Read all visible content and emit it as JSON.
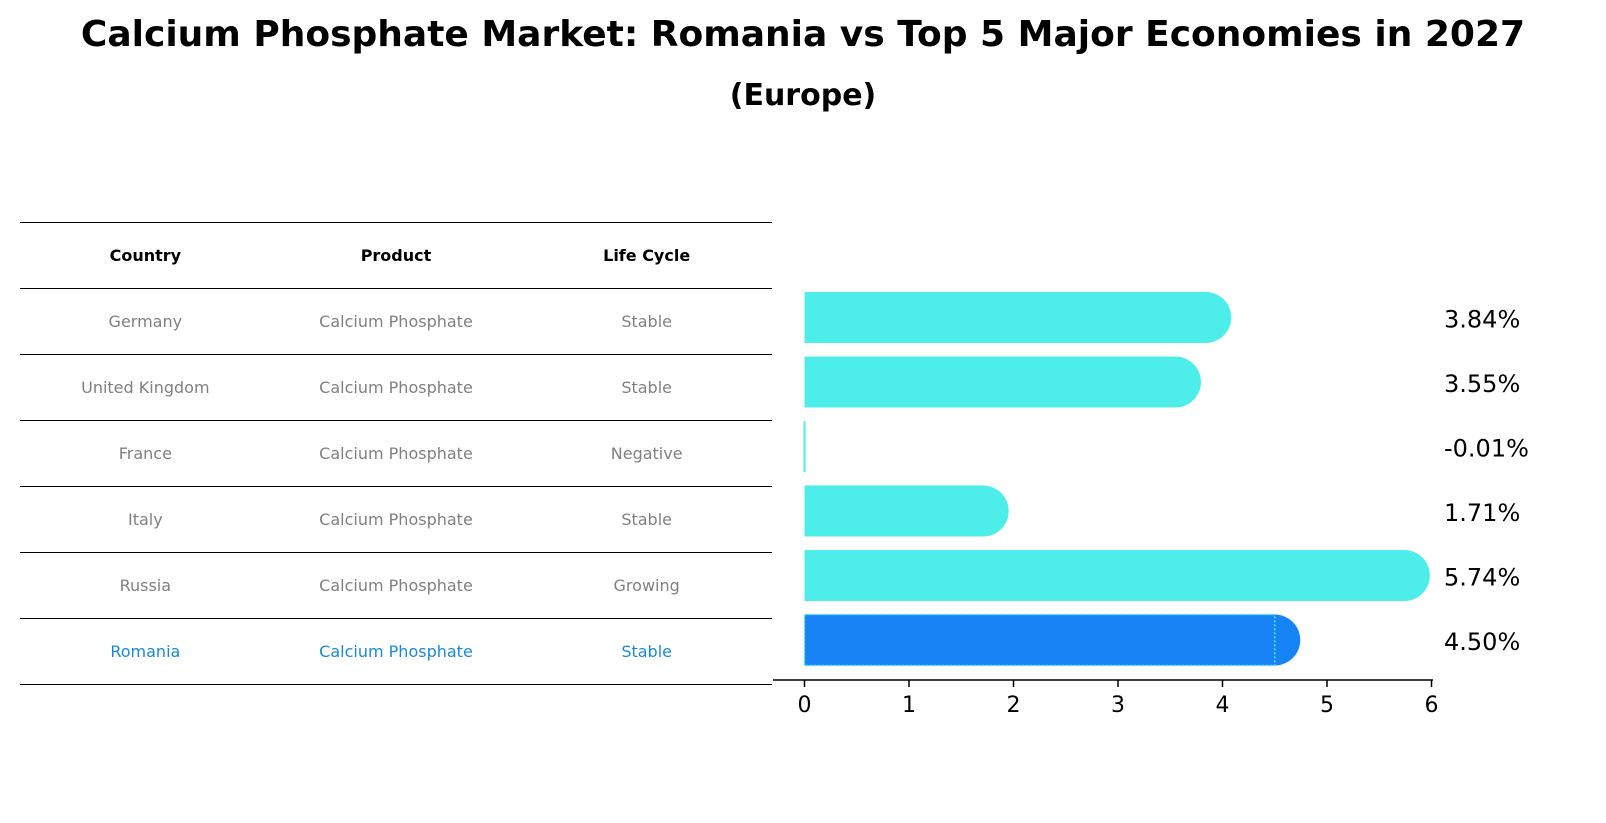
{
  "title": "Calcium Phosphate Market: Romania vs Top 5 Major Economies in 2027",
  "subtitle": "(Europe)",
  "table": {
    "headers": [
      "Country",
      "Product",
      "Life Cycle"
    ],
    "rows": [
      {
        "country": "Germany",
        "product": "Calcium Phosphate",
        "life_cycle": "Stable"
      },
      {
        "country": "United Kingdom",
        "product": "Calcium Phosphate",
        "life_cycle": "Stable"
      },
      {
        "country": "France",
        "product": "Calcium Phosphate",
        "life_cycle": "Negative"
      },
      {
        "country": "Italy",
        "product": "Calcium Phosphate",
        "life_cycle": "Stable"
      },
      {
        "country": "Russia",
        "product": "Calcium Phosphate",
        "life_cycle": "Growing"
      },
      {
        "country": "Romania",
        "product": "Calcium Phosphate",
        "life_cycle": "Stable"
      }
    ]
  },
  "chart_data": {
    "type": "bar",
    "orientation": "horizontal",
    "title": "Calcium Phosphate Market: Romania vs Top 5 Major Economies in 2027",
    "subtitle": "(Europe)",
    "categories": [
      "Germany",
      "United Kingdom",
      "France",
      "Italy",
      "Russia",
      "Romania"
    ],
    "values": [
      3.84,
      3.55,
      -0.01,
      1.71,
      5.74,
      4.5
    ],
    "value_labels": [
      "3.84%",
      "3.55%",
      "-0.01%",
      "1.71%",
      "5.74%",
      "4.50%"
    ],
    "highlight": "Romania",
    "xlim": [
      -0.3,
      6
    ],
    "xticks": [
      "0",
      "1",
      "2",
      "3",
      "4",
      "5",
      "6"
    ],
    "xlabel": "",
    "ylabel": "",
    "grid": false,
    "colors": {
      "default": "#4deeea",
      "highlight": "#1783f5"
    }
  }
}
